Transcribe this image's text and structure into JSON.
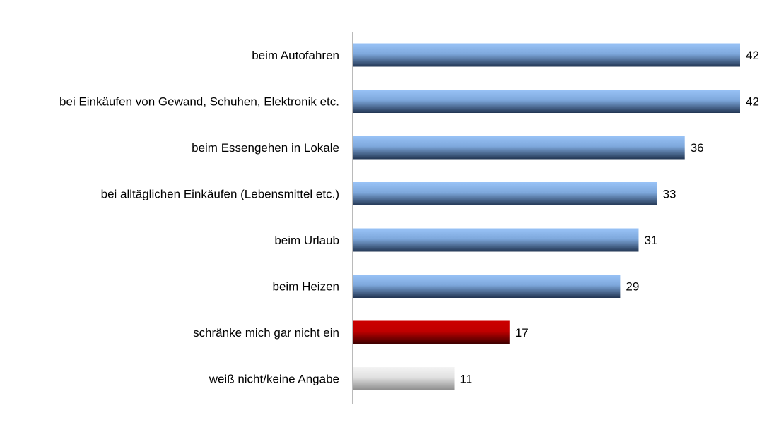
{
  "chart_data": {
    "type": "bar",
    "orientation": "horizontal",
    "title": "",
    "xlabel": "",
    "ylabel": "",
    "xlim": [
      0,
      42
    ],
    "grid": false,
    "legend": "none",
    "categories": [
      "beim Autofahren",
      "bei Einkäufen von Gewand, Schuhen, Elektronik etc.",
      "beim Essengehen in Lokale",
      "bei alltäglichen Einkäufen (Lebensmittel etc.)",
      "beim Urlaub",
      "beim Heizen",
      "schränke mich gar nicht ein",
      "weiß nicht/keine Angabe"
    ],
    "values": [
      42,
      42,
      36,
      33,
      31,
      29,
      17,
      11
    ],
    "bar_colors": [
      "blue",
      "blue",
      "blue",
      "blue",
      "blue",
      "blue",
      "red",
      "grey"
    ],
    "palette": {
      "blue": {
        "top": "#99c3f7",
        "mid": "#7ea8dc",
        "bottom": "#223552"
      },
      "red": {
        "top": "#cc0000",
        "mid": "#c00000",
        "bottom": "#3a0000"
      },
      "grey": {
        "top": "#f4f4f4",
        "mid": "#e0e0e0",
        "bottom": "#8a8a8a"
      }
    }
  }
}
